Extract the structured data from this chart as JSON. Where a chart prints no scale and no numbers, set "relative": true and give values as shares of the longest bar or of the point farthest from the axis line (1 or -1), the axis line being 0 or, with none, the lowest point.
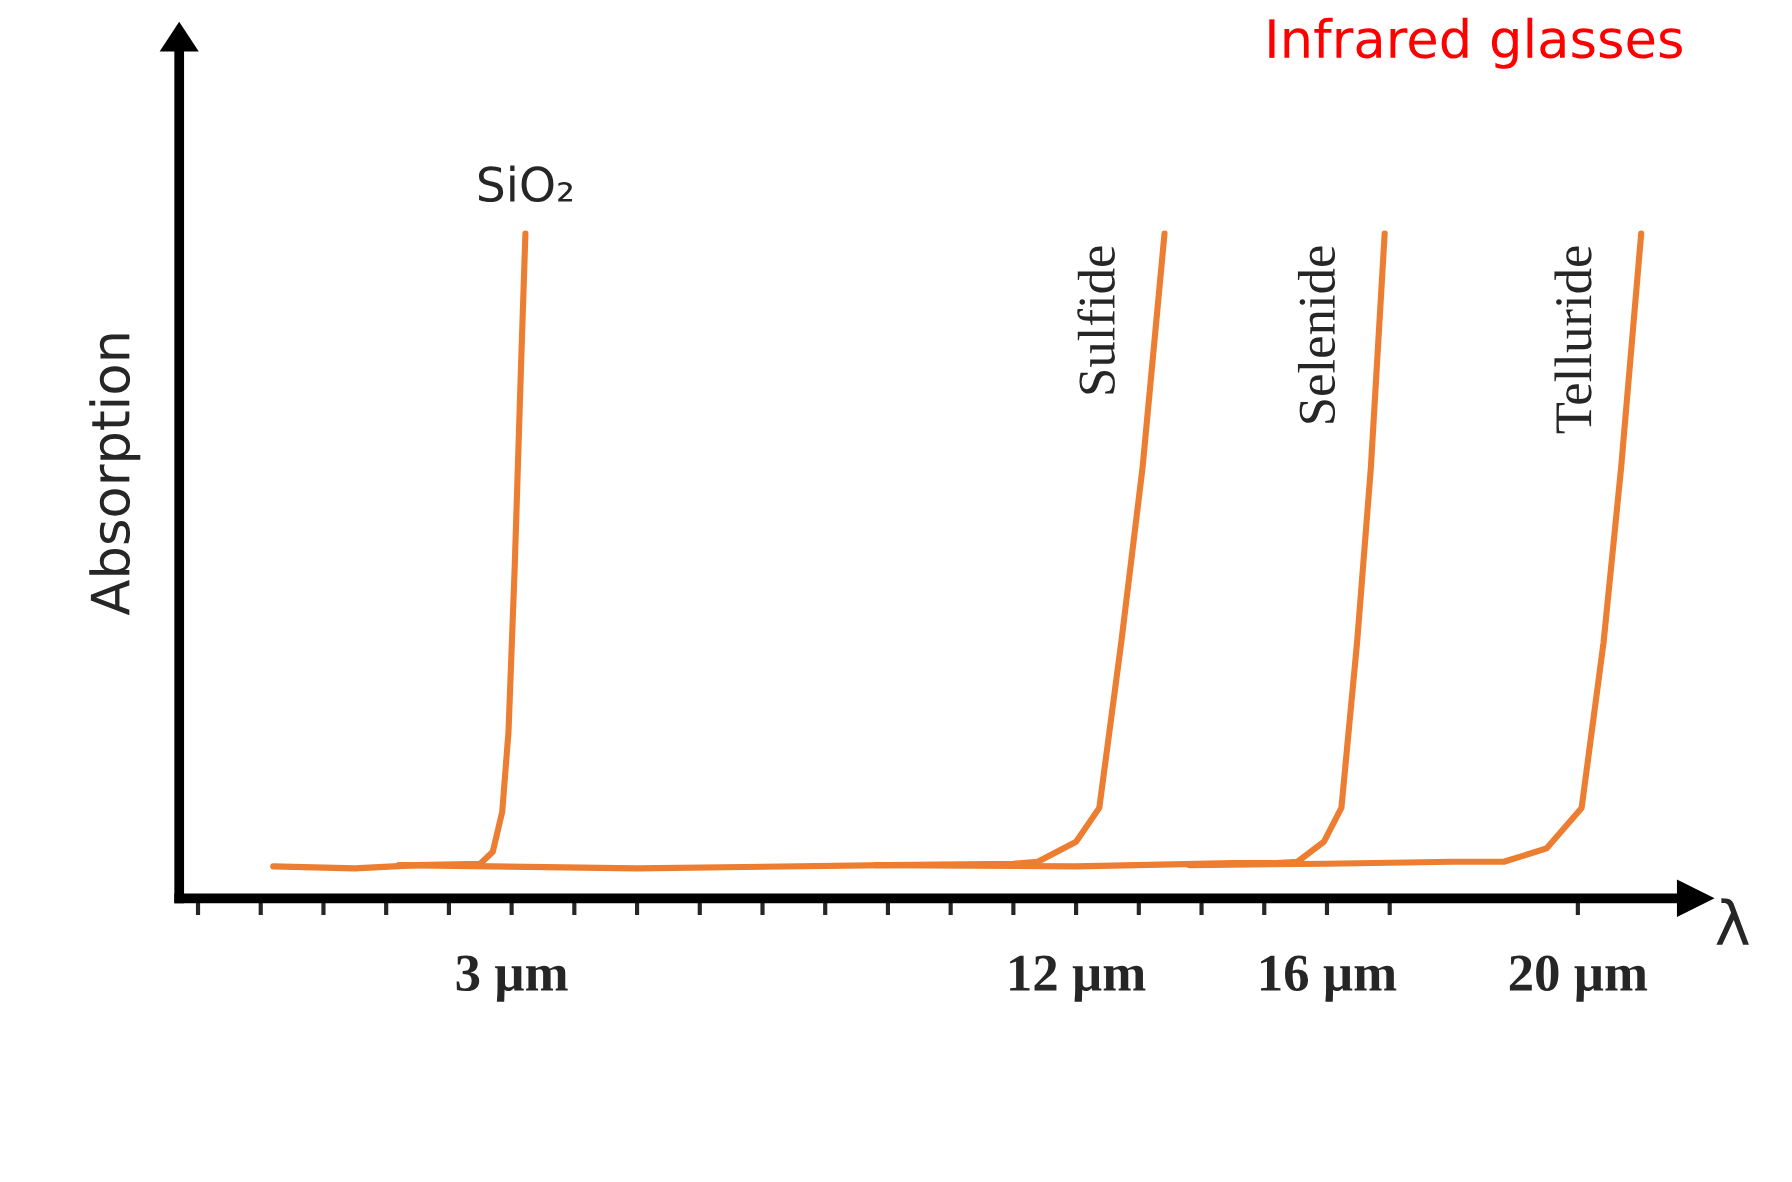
{
  "chart_data": {
    "type": "line",
    "title": "Infrared glasses",
    "xlabel": "λ",
    "ylabel": "Absorption",
    "relative": true,
    "xlim": [
      -2.3,
      21.7
    ],
    "xticks": [
      {
        "value": -2,
        "label": null
      },
      {
        "value": -1,
        "label": null
      },
      {
        "value": 0,
        "label": null
      },
      {
        "value": 1,
        "label": null
      },
      {
        "value": 2,
        "label": null
      },
      {
        "value": 3,
        "label": "3 µm"
      },
      {
        "value": 4,
        "label": null
      },
      {
        "value": 5,
        "label": null
      },
      {
        "value": 6,
        "label": null
      },
      {
        "value": 7,
        "label": null
      },
      {
        "value": 8,
        "label": null
      },
      {
        "value": 9,
        "label": null
      },
      {
        "value": 10,
        "label": null
      },
      {
        "value": 11,
        "label": null
      },
      {
        "value": 12,
        "label": "12 µm"
      },
      {
        "value": 13,
        "label": null
      },
      {
        "value": 14,
        "label": null
      },
      {
        "value": 15,
        "label": null
      },
      {
        "value": 16,
        "label": "16 µm"
      },
      {
        "value": 17,
        "label": null
      },
      {
        "value": 20,
        "label": "20 µm"
      }
    ],
    "series": [
      {
        "name": "SiO₂",
        "color": "#ed7d31",
        "x": [
          -0.8,
          0.5,
          1.5,
          2.5,
          2.7,
          2.85,
          2.95,
          3.05,
          3.15,
          3.22
        ],
        "values": [
          0.048,
          0.045,
          0.05,
          0.052,
          0.07,
          0.13,
          0.25,
          0.5,
          0.8,
          1.0
        ]
      },
      {
        "name": "Sulfide",
        "color": "#ed7d31",
        "x": [
          1.2,
          5.0,
          9.0,
          11.0,
          11.39,
          12.0,
          12.37,
          12.72,
          13.06,
          13.41
        ],
        "values": [
          0.05,
          0.045,
          0.05,
          0.052,
          0.055,
          0.085,
          0.136,
          0.385,
          0.648,
          1.0
        ]
      },
      {
        "name": "Selenide",
        "color": "#ed7d31",
        "x": [
          8.8,
          12.0,
          14.5,
          15.2,
          15.53,
          15.95,
          16.23,
          16.48,
          16.7,
          16.92
        ],
        "values": [
          0.05,
          0.048,
          0.053,
          0.053,
          0.055,
          0.085,
          0.136,
          0.385,
          0.648,
          1.0
        ]
      },
      {
        "name": "Telluride",
        "color": "#ed7d31",
        "x": [
          13.8,
          16.0,
          18.0,
          18.82,
          19.5,
          20.06,
          20.41,
          20.69,
          21.01
        ],
        "values": [
          0.05,
          0.052,
          0.055,
          0.055,
          0.075,
          0.136,
          0.385,
          0.648,
          1.0
        ]
      }
    ]
  }
}
